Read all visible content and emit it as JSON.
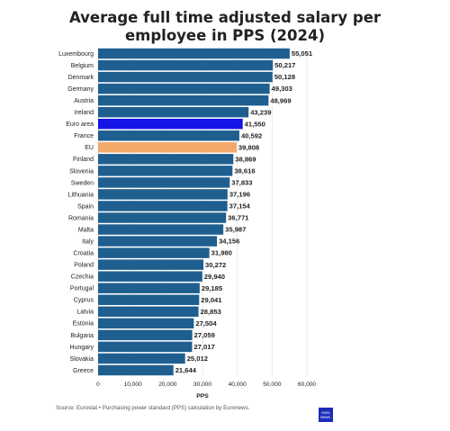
{
  "title_line1": "Average full time adjusted salary per",
  "title_line2": "employee in PPS (2024)",
  "source": "Source: Eurostat • Purchasing power standard (PPS) calculation by Euronews.",
  "logo": {
    "line1": "euro",
    "line2": "news."
  },
  "colors": {
    "default_bar": "#1f5f8f",
    "euro_area_bar": "#1414e6",
    "eu_bar": "#f2a96a",
    "grid": "#e3e3e3",
    "text": "#222222",
    "logo_bg": "#1b2bb8"
  },
  "chart_data": {
    "type": "bar",
    "orientation": "horizontal",
    "title": "Average full time adjusted salary per employee in PPS (2024)",
    "xlabel": "PPS",
    "ylabel": "",
    "xlim": [
      0,
      60000
    ],
    "xticks": [
      0,
      10000,
      20000,
      30000,
      40000,
      50000,
      60000
    ],
    "xtick_labels": [
      "0",
      "10,000",
      "20,000",
      "30,000",
      "40,000",
      "50,000",
      "60,000"
    ],
    "grid": "vertical",
    "categories": [
      "Luxembourg",
      "Belgium",
      "Denmark",
      "Germany",
      "Austria",
      "Ireland",
      "Euro area",
      "France",
      "EU",
      "Finland",
      "Slovenia",
      "Sweden",
      "Lithuania",
      "Spain",
      "Romania",
      "Malta",
      "Italy",
      "Croatia",
      "Poland",
      "Czechia",
      "Portugal",
      "Cyprus",
      "Latvia",
      "Estonia",
      "Bulgaria",
      "Hungary",
      "Slovakia",
      "Greece"
    ],
    "values": [
      55051,
      50217,
      50128,
      49303,
      48969,
      43239,
      41550,
      40592,
      39808,
      38869,
      38616,
      37833,
      37196,
      37154,
      36771,
      35987,
      34156,
      31980,
      30272,
      29940,
      29185,
      29041,
      28853,
      27504,
      27059,
      27017,
      25012,
      21644
    ],
    "value_labels": [
      "55,051",
      "50,217",
      "50,128",
      "49,303",
      "48,969",
      "43,239",
      "41,550",
      "40,592",
      "39,808",
      "38,869",
      "38,616",
      "37,833",
      "37,196",
      "37,154",
      "36,771",
      "35,987",
      "34,156",
      "31,980",
      "30,272",
      "29,940",
      "29,185",
      "29,041",
      "28,853",
      "27,504",
      "27,059",
      "27,017",
      "25,012",
      "21,644"
    ],
    "highlight": {
      "Euro area": "#1414e6",
      "EU": "#f2a96a"
    }
  }
}
